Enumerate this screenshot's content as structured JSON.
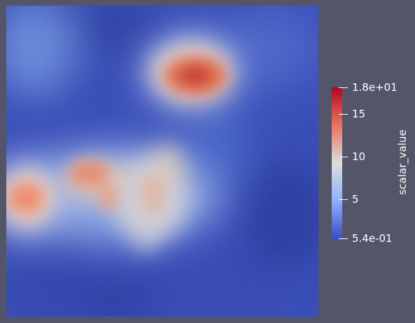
{
  "colorbar": {
    "title": "scalar_value",
    "ticks": [
      {
        "label": "1.8e+01",
        "value": 18.0
      },
      {
        "label": "15",
        "value": 15
      },
      {
        "label": "10",
        "value": 10
      },
      {
        "label": "5",
        "value": 5
      },
      {
        "label": "5.4e-01",
        "value": 0.54
      }
    ],
    "range": [
      0.54,
      18.0
    ],
    "colormap": "cool-to-warm"
  },
  "colors": {
    "background": "#545569",
    "low": "#3b4cc0",
    "mid": "#dddddd",
    "high": "#b40426"
  }
}
